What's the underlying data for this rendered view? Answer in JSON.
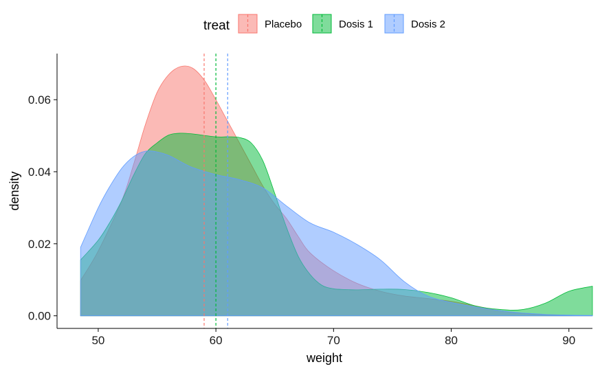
{
  "chart_data": {
    "type": "area",
    "subtype": "density",
    "title": "",
    "xlabel": "weight",
    "ylabel": "density",
    "xlim": [
      46.5,
      92.0
    ],
    "ylim": [
      -0.0035,
      0.0728
    ],
    "x_ticks": [
      50,
      60,
      70,
      80,
      90
    ],
    "y_ticks": [
      0.0,
      0.02,
      0.04,
      0.06
    ],
    "y_tick_labels": [
      "0.00",
      "0.02",
      "0.04",
      "0.06"
    ],
    "grid": false,
    "legend": {
      "title": "treat",
      "position": "top",
      "entries": [
        "Placebo",
        "Dosis 1",
        "Dosis 2"
      ]
    },
    "series": [
      {
        "name": "Placebo",
        "color": "#F8766D",
        "fill_opacity": 0.5,
        "mean_line": 59,
        "x": [
          48.5,
          50,
          52,
          53,
          54,
          55,
          56,
          57,
          58,
          59,
          60,
          61,
          62,
          63,
          64,
          65,
          66,
          67,
          68,
          70,
          72,
          74,
          76,
          78,
          80,
          82,
          84,
          86,
          88,
          90,
          92
        ],
        "y": [
          0.0098,
          0.018,
          0.032,
          0.042,
          0.053,
          0.062,
          0.067,
          0.0692,
          0.0688,
          0.0655,
          0.06,
          0.054,
          0.048,
          0.042,
          0.036,
          0.031,
          0.027,
          0.022,
          0.0175,
          0.0125,
          0.009,
          0.0068,
          0.0055,
          0.0048,
          0.004,
          0.0028,
          0.0015,
          0.0007,
          0.0003,
          0.0001,
          0.0
        ]
      },
      {
        "name": "Dosis 1",
        "color": "#00BA38",
        "fill_opacity": 0.5,
        "mean_line": 60,
        "x": [
          48.5,
          50,
          51,
          52,
          53,
          54,
          55,
          56,
          57,
          58,
          60,
          61,
          62,
          63,
          64,
          65,
          66,
          67,
          68,
          69,
          70,
          71,
          72,
          74,
          76,
          78,
          80,
          82,
          84,
          86,
          88,
          90,
          92
        ],
        "y": [
          0.0155,
          0.021,
          0.026,
          0.032,
          0.039,
          0.045,
          0.048,
          0.0502,
          0.0507,
          0.0505,
          0.0497,
          0.0497,
          0.0495,
          0.048,
          0.043,
          0.034,
          0.0245,
          0.0165,
          0.0115,
          0.0085,
          0.0075,
          0.0073,
          0.0072,
          0.0074,
          0.0073,
          0.0065,
          0.005,
          0.0028,
          0.0018,
          0.0017,
          0.0035,
          0.0068,
          0.0082
        ]
      },
      {
        "name": "Dosis 2",
        "color": "#619CFF",
        "fill_opacity": 0.5,
        "mean_line": 61,
        "x": [
          48.5,
          50,
          51,
          52,
          53,
          54,
          55,
          56,
          57,
          58,
          60,
          62,
          64,
          66,
          68,
          70,
          72,
          74,
          76,
          78,
          80,
          82,
          84,
          86,
          88,
          90,
          92
        ],
        "y": [
          0.019,
          0.03,
          0.036,
          0.041,
          0.0442,
          0.0457,
          0.0455,
          0.0445,
          0.0428,
          0.0412,
          0.0392,
          0.0378,
          0.0355,
          0.0305,
          0.0258,
          0.0232,
          0.0198,
          0.0155,
          0.0095,
          0.0055,
          0.0037,
          0.0025,
          0.0015,
          0.0008,
          0.0004,
          0.0002,
          0.0001
        ]
      }
    ]
  }
}
